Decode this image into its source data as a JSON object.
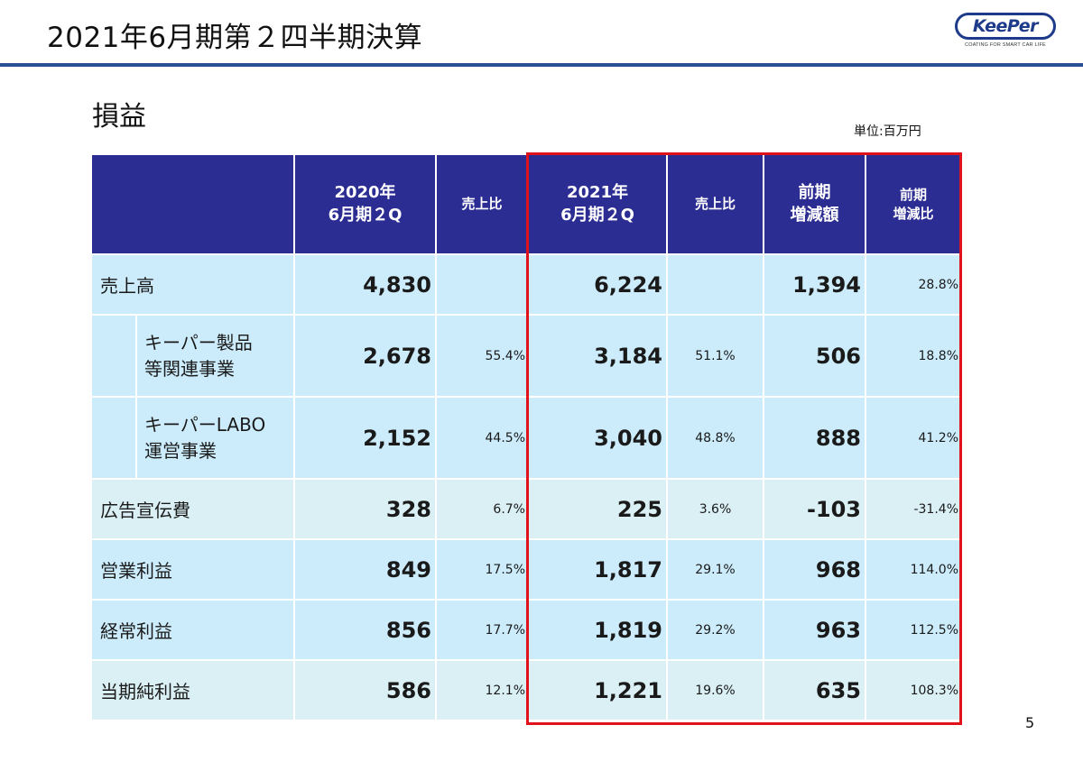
{
  "header": {
    "title": "2021年6月期第２四半期決算",
    "logo_text": "KeePer",
    "logo_tagline": "COATING FOR SMART CAR LIFE"
  },
  "section": {
    "title": "損益",
    "unit": "単位:百万円"
  },
  "table": {
    "headers": {
      "fy2020_line1": "2020年",
      "fy2020_line2": "6月期２Q",
      "ratio2020": "売上比",
      "fy2021_line1": "2021年",
      "fy2021_line2": "6月期２Q",
      "ratio2021": "売上比",
      "yoy_amount_line1": "前期",
      "yoy_amount_line2": "増減額",
      "yoy_rate_line1": "前期",
      "yoy_rate_line2": "増減比"
    },
    "rows": [
      {
        "label": "売上高",
        "v2020": "4,830",
        "r2020": "",
        "v2021": "6,224",
        "r2021": "",
        "diff": "1,394",
        "rate": "28.8%"
      },
      {
        "label_line1": "キーパー製品",
        "label_line2": "等関連事業",
        "v2020": "2,678",
        "r2020": "55.4%",
        "v2021": "3,184",
        "r2021": "51.1%",
        "diff": "506",
        "rate": "18.8%"
      },
      {
        "label_line1": "キーパーLABO",
        "label_line2": "運営事業",
        "v2020": "2,152",
        "r2020": "44.5%",
        "v2021": "3,040",
        "r2021": "48.8%",
        "diff": "888",
        "rate": "41.2%"
      },
      {
        "label": "広告宣伝費",
        "v2020": "328",
        "r2020": "6.7%",
        "v2021": "225",
        "r2021": "3.6%",
        "diff": "-103",
        "rate": "-31.4%"
      },
      {
        "label": "営業利益",
        "v2020": "849",
        "r2020": "17.5%",
        "v2021": "1,817",
        "r2021": "29.1%",
        "diff": "968",
        "rate": "114.0%"
      },
      {
        "label": "経常利益",
        "v2020": "856",
        "r2020": "17.7%",
        "v2021": "1,819",
        "r2021": "29.2%",
        "diff": "963",
        "rate": "112.5%"
      },
      {
        "label": "当期純利益",
        "v2020": "586",
        "r2020": "12.1%",
        "v2021": "1,221",
        "r2021": "19.6%",
        "diff": "635",
        "rate": "108.3%"
      }
    ]
  },
  "page_number": "5",
  "colors": {
    "header_bg": "#2c2d92",
    "row_blue": "#ccecfb",
    "row_teal": "#daf0f5",
    "highlight": "#e2121c",
    "rule": "#284f93"
  }
}
